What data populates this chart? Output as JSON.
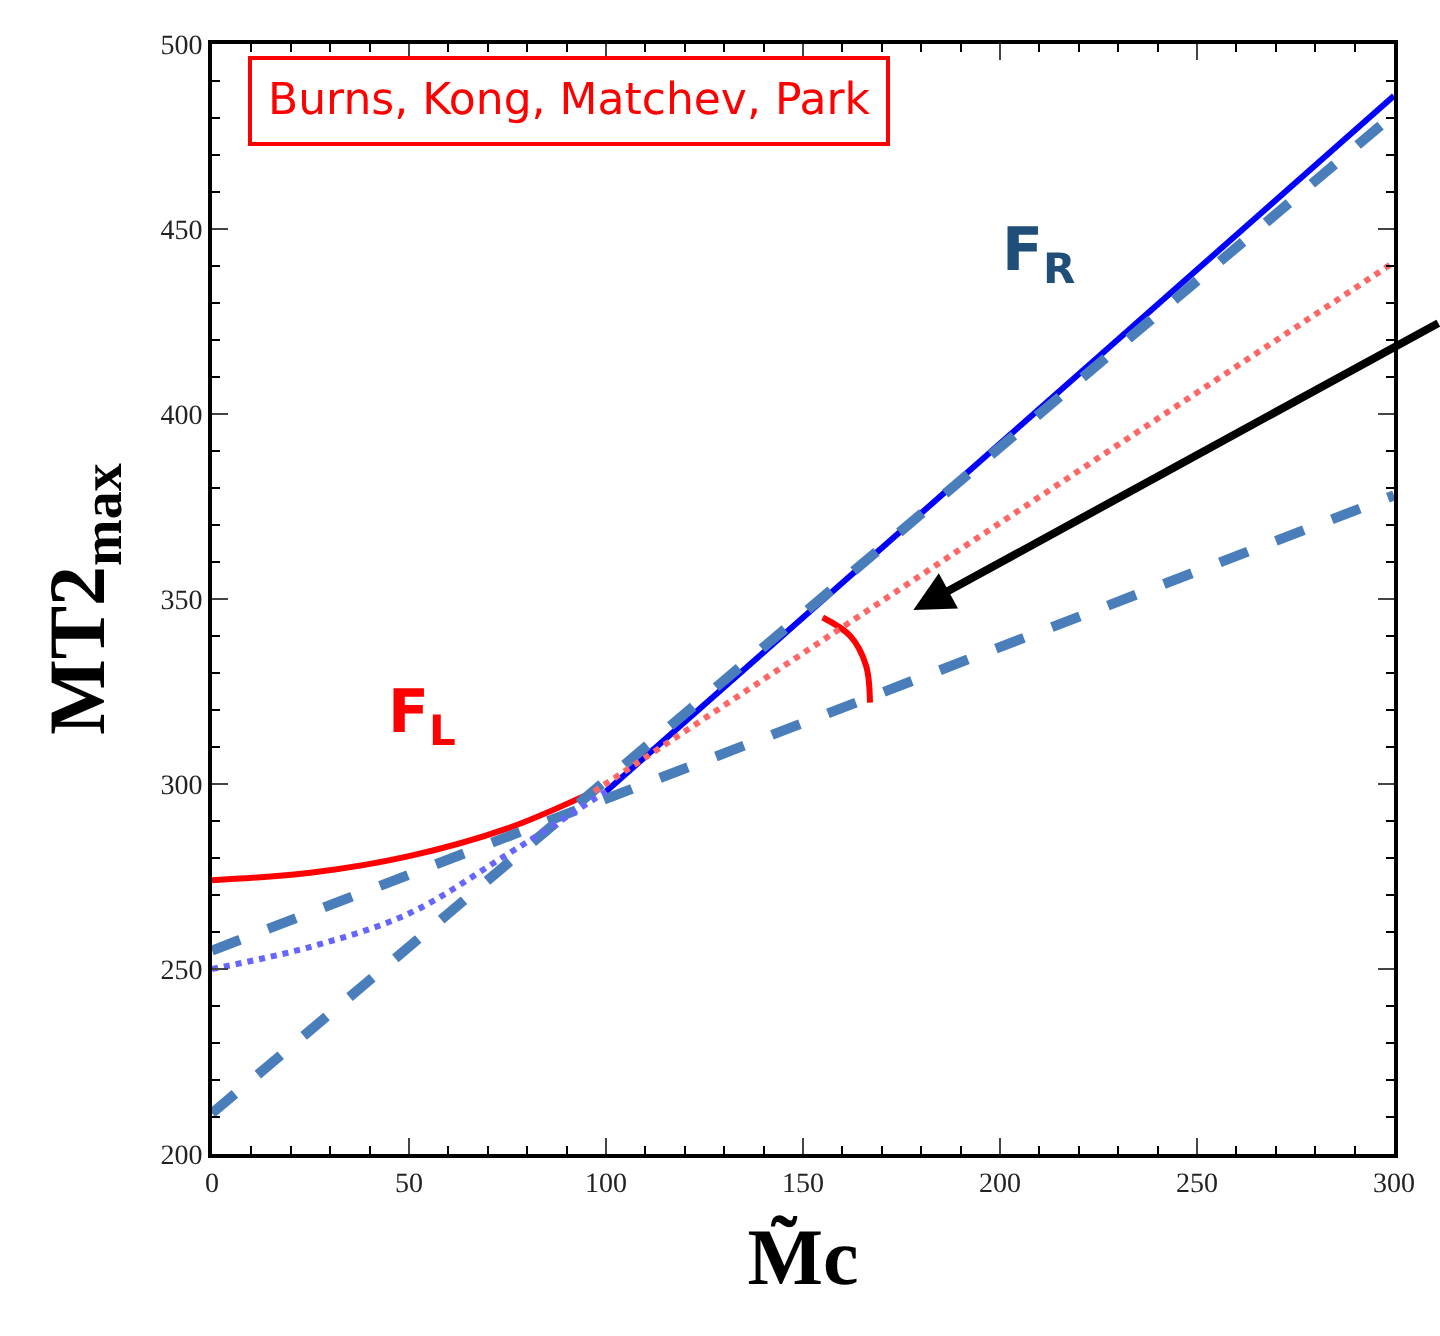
{
  "chart_data": {
    "type": "line",
    "xlabel": "M̃c",
    "ylabel": "MT2$_{max}$",
    "xlim": [
      0,
      300
    ],
    "xticks": [
      0,
      50,
      100,
      150,
      200,
      250,
      300
    ],
    "ylim": [
      200,
      500
    ],
    "yticks": [
      200,
      250,
      300,
      350,
      400,
      450,
      500
    ],
    "series": [
      {
        "name": "F$_{L}$",
        "color": "#ff0000",
        "line_style": "solid",
        "x": [
          0,
          25,
          50,
          75,
          97
        ],
        "values": [
          274,
          276,
          280.5,
          288,
          298
        ]
      },
      {
        "color": "#ff6666",
        "line_style": "dotted",
        "x": [
          97,
          300
        ],
        "values": [
          298,
          441
        ]
      },
      {
        "name": "F$_{R}$",
        "color": "#0000ff",
        "line_style": "solid",
        "x": [
          100,
          300
        ],
        "values": [
          298,
          486
        ]
      },
      {
        "color": "#6666ff",
        "line_style": "dotted",
        "x": [
          0,
          25,
          50,
          75,
          100
        ],
        "values": [
          250,
          256,
          265,
          281,
          298
        ]
      },
      {
        "color": "#4a7ebb",
        "line_style": "dashed",
        "x": [
          0,
          300
        ],
        "values": [
          255,
          378
        ]
      },
      {
        "color": "#4a7ebb",
        "line_style": "dashed",
        "x": [
          0,
          300
        ],
        "values": [
          211,
          481
        ]
      },
      {
        "color": "#ff0000",
        "line_style": "solid",
        "x": [
          155,
          162,
          166,
          167
        ],
        "values": [
          345,
          340,
          332,
          322
        ]
      }
    ],
    "annotations": [
      "Burns, Kong, Matchev, Park"
    ]
  }
}
